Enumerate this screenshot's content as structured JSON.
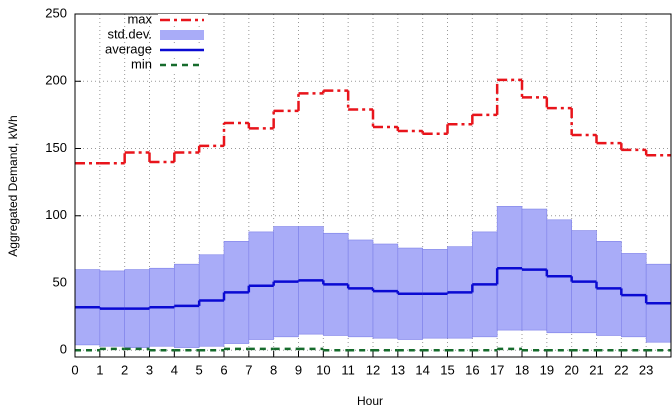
{
  "chart_data": {
    "type": "step",
    "xlabel": "Hour",
    "ylabel": "Aggregated Demand, kWh",
    "x": [
      0,
      1,
      2,
      3,
      4,
      5,
      6,
      7,
      8,
      9,
      10,
      11,
      12,
      13,
      14,
      15,
      16,
      17,
      18,
      19,
      20,
      21,
      22,
      23
    ],
    "series": [
      {
        "name": "max",
        "color": "#e8141b",
        "values": [
          139,
          139,
          147,
          140,
          147,
          152,
          169,
          165,
          178,
          191,
          193,
          179,
          166,
          163,
          161,
          168,
          175,
          201,
          188,
          180,
          160,
          154,
          149,
          145
        ]
      },
      {
        "name": "std.dev.",
        "color": "#a9acf8",
        "values": [
          28,
          28,
          29,
          29,
          31,
          34,
          38,
          40,
          41,
          40,
          38,
          36,
          35,
          34,
          33,
          34,
          39,
          46,
          45,
          42,
          38,
          35,
          31,
          29
        ]
      },
      {
        "name": "average",
        "color": "#0a0ad2",
        "values": [
          32,
          31,
          31,
          32,
          33,
          37,
          43,
          48,
          51,
          52,
          49,
          46,
          44,
          42,
          42,
          43,
          49,
          61,
          60,
          55,
          51,
          46,
          41,
          35
        ]
      },
      {
        "name": "min",
        "color": "#166b2c",
        "values": [
          0,
          1,
          1,
          0,
          0,
          0,
          1,
          1,
          1,
          1,
          0,
          0,
          0,
          0,
          0,
          0,
          0,
          1,
          0,
          0,
          0,
          0,
          0,
          0
        ]
      }
    ],
    "xlim": [
      0,
      24
    ],
    "xticks": [
      0,
      1,
      2,
      3,
      4,
      5,
      6,
      7,
      8,
      9,
      10,
      11,
      12,
      13,
      14,
      15,
      16,
      17,
      18,
      19,
      20,
      21,
      22,
      23
    ],
    "ylim": [
      -5,
      250
    ],
    "yticks": [
      0,
      50,
      100,
      150,
      200,
      250
    ],
    "grid": true,
    "legend": "top-left"
  }
}
